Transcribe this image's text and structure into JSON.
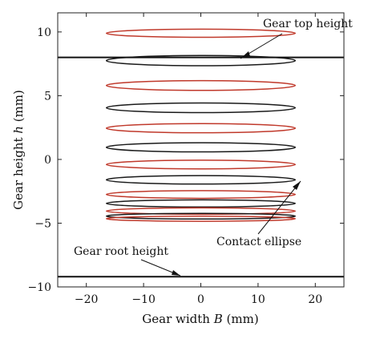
{
  "chart_data": {
    "type": "contour",
    "xlabel": {
      "pre": "Gear width ",
      "var": "B",
      "post": " (mm)"
    },
    "ylabel": {
      "pre": "Gear height ",
      "var": "h",
      "post": " (mm)"
    },
    "xlim": [
      -25,
      25
    ],
    "ylim": [
      -10,
      11.5
    ],
    "xticks": [
      -20,
      -10,
      0,
      10,
      20
    ],
    "yticks": [
      -10,
      -5,
      0,
      5,
      10
    ],
    "xtick_labels": [
      "−20",
      "−10",
      "0",
      "10",
      "20"
    ],
    "ytick_labels": [
      "−10",
      "−5",
      "0",
      "5",
      "10"
    ],
    "grid": false,
    "colors": {
      "red": "#c0392b",
      "black": "#1a1a1a"
    },
    "reference_lines": [
      {
        "name": "gear-top-height-line",
        "y": 8.0
      },
      {
        "name": "gear-root-height-line",
        "y": -9.2
      }
    ],
    "ellipses": [
      {
        "cx": 0,
        "cy": 9.9,
        "rx": 16.5,
        "ry": 0.32,
        "color": "red"
      },
      {
        "cx": 0,
        "cy": 7.75,
        "rx": 16.5,
        "ry": 0.4,
        "color": "black"
      },
      {
        "cx": 0,
        "cy": 5.8,
        "rx": 16.5,
        "ry": 0.38,
        "color": "red"
      },
      {
        "cx": 0,
        "cy": 4.05,
        "rx": 16.5,
        "ry": 0.38,
        "color": "black"
      },
      {
        "cx": 0,
        "cy": 2.45,
        "rx": 16.5,
        "ry": 0.36,
        "color": "red"
      },
      {
        "cx": 0,
        "cy": 0.95,
        "rx": 16.5,
        "ry": 0.36,
        "color": "black"
      },
      {
        "cx": 0,
        "cy": -0.4,
        "rx": 16.5,
        "ry": 0.34,
        "color": "red"
      },
      {
        "cx": 0,
        "cy": -1.6,
        "rx": 16.5,
        "ry": 0.33,
        "color": "black"
      },
      {
        "cx": 0,
        "cy": -2.75,
        "rx": 16.5,
        "ry": 0.3,
        "color": "red"
      },
      {
        "cx": 0,
        "cy": -3.45,
        "rx": 16.5,
        "ry": 0.28,
        "color": "black"
      },
      {
        "cx": 0,
        "cy": -4.05,
        "rx": 16.5,
        "ry": 0.25,
        "color": "red"
      },
      {
        "cx": 0,
        "cy": -4.45,
        "rx": 16.5,
        "ry": 0.22,
        "color": "black"
      },
      {
        "cx": 0,
        "cy": -4.65,
        "rx": 16.5,
        "ry": 0.2,
        "color": "red"
      }
    ],
    "annotations": [
      {
        "text": "Gear top height",
        "arrow_to": [
          3.5,
          8.0
        ]
      },
      {
        "text": "Contact ellipse",
        "arrow_to": [
          14.5,
          -2.4
        ]
      },
      {
        "text": "Gear root height",
        "arrow_to": [
          -5,
          -9.2
        ]
      }
    ]
  }
}
